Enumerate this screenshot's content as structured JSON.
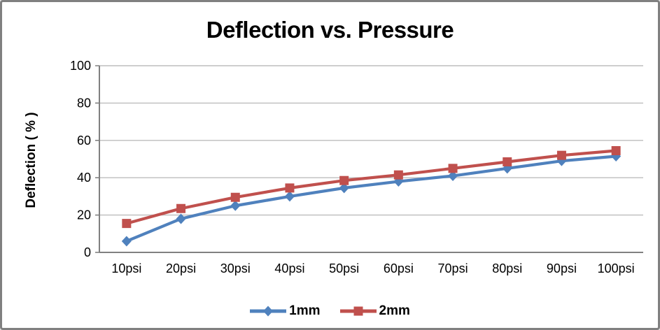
{
  "frame": {
    "background": "#ffffff",
    "border_color": "#808080"
  },
  "chart_data": {
    "type": "line",
    "title": "Deflection vs. Pressure",
    "xlabel": "",
    "ylabel": "Deflection ( % )",
    "categories": [
      "10psi",
      "20psi",
      "30psi",
      "40psi",
      "50psi",
      "60psi",
      "70psi",
      "80psi",
      "90psi",
      "100psi"
    ],
    "series": [
      {
        "name": "1mm",
        "color": "#4F81BD",
        "marker": "diamond",
        "values": [
          6,
          18,
          25,
          30,
          34.5,
          38,
          41,
          45,
          49,
          51.5
        ]
      },
      {
        "name": "2mm",
        "color": "#C0504D",
        "marker": "square",
        "values": [
          15.5,
          23.5,
          29.5,
          34.5,
          38.5,
          41.5,
          45,
          48.5,
          52,
          54.5
        ]
      }
    ],
    "ylim": [
      0,
      100
    ],
    "yticks": [
      0,
      20,
      40,
      60,
      80,
      100
    ],
    "grid": "horizontal",
    "legend_position": "bottom",
    "colors": {
      "gridline": "#bdbdbd",
      "axis": "#808080",
      "tick_text": "#000000"
    }
  }
}
